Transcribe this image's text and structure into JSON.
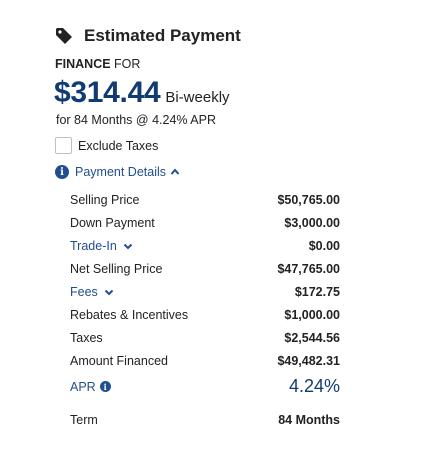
{
  "header": {
    "icon": "tag-icon",
    "title": "Estimated Payment"
  },
  "mode": {
    "type": "FINANCE",
    "suffix": "FOR"
  },
  "payment": {
    "amount": "$314.44",
    "frequency": "Bi-weekly",
    "terms": "for 84 Months @ 4.24% APR"
  },
  "exclude_taxes": {
    "label": "Exclude Taxes",
    "checked": false
  },
  "details_toggle": {
    "label": "Payment Details",
    "expanded": true
  },
  "details": {
    "selling_price": {
      "label": "Selling Price",
      "value": "$50,765.00"
    },
    "down_payment": {
      "label": "Down Payment",
      "value": "$3,000.00"
    },
    "trade_in": {
      "label": "Trade-In",
      "value": "$0.00"
    },
    "net_selling_price": {
      "label": "Net Selling Price",
      "value": "$47,765.00"
    },
    "fees": {
      "label": "Fees",
      "value": "$172.75"
    },
    "rebates": {
      "label": "Rebates & Incentives",
      "value": "$1,000.00"
    },
    "taxes": {
      "label": "Taxes",
      "value": "$2,544.56"
    },
    "amount_financed": {
      "label": "Amount Financed",
      "value": "$49,482.31"
    },
    "apr": {
      "label": "APR",
      "value": "4.24%"
    },
    "term": {
      "label": "Term",
      "value": "84 Months"
    }
  },
  "colors": {
    "accent": "#1f4f8f",
    "amount": "#123b73",
    "text": "#222222"
  }
}
